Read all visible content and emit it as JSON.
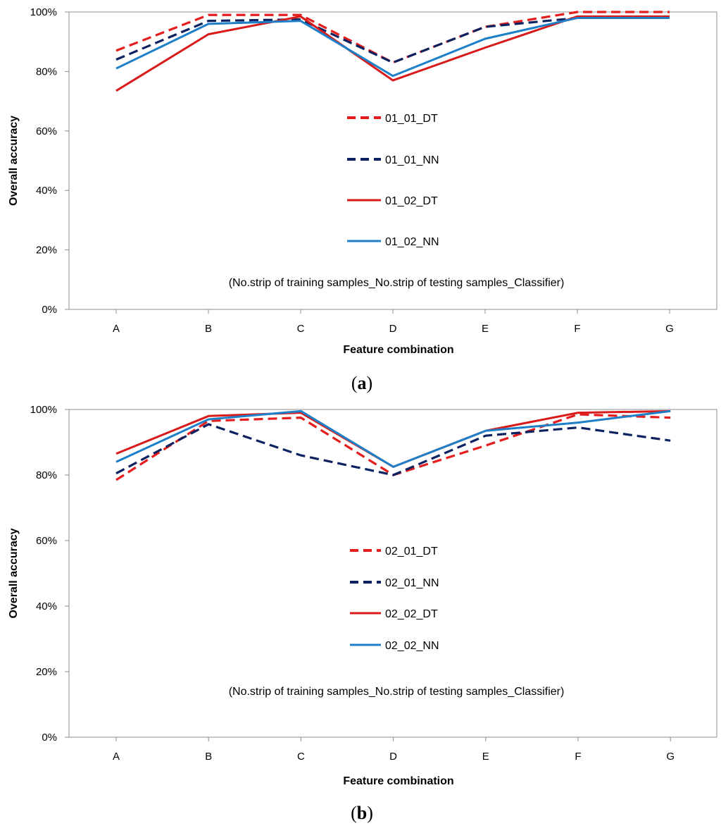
{
  "chart_data": [
    {
      "type": "line",
      "panel_label": "a",
      "categories": [
        "A",
        "B",
        "C",
        "D",
        "E",
        "F",
        "G"
      ],
      "xlabel": "Feature combination",
      "ylabel": "Overall accuracy",
      "ylim": [
        0,
        100
      ],
      "yticks": [
        "0%",
        "20%",
        "40%",
        "60%",
        "80%",
        "100%"
      ],
      "note": "(No.strip of training samples_No.strip of testing samples_Classifier)",
      "series": [
        {
          "name": "01_01_DT",
          "color": "#e41e1e",
          "style": "dashed",
          "values": [
            87,
            99,
            99,
            83,
            95,
            100,
            100
          ]
        },
        {
          "name": "01_01_NN",
          "color": "#0d2260",
          "style": "dashed",
          "values": [
            84,
            97,
            97.5,
            83,
            95,
            98,
            98
          ]
        },
        {
          "name": "01_02_DT",
          "color": "#d91a1a",
          "style": "solid",
          "values": [
            73.5,
            92.5,
            98.5,
            77,
            88,
            98.5,
            98.5
          ]
        },
        {
          "name": "01_02_NN",
          "color": "#1d7fc8",
          "style": "solid",
          "values": [
            81,
            96,
            97,
            78.5,
            91,
            98,
            98
          ]
        }
      ]
    },
    {
      "type": "line",
      "panel_label": "b",
      "categories": [
        "A",
        "B",
        "C",
        "D",
        "E",
        "F",
        "G"
      ],
      "xlabel": "Feature combination",
      "ylabel": "Overall accuracy",
      "ylim": [
        0,
        100
      ],
      "yticks": [
        "0%",
        "20%",
        "40%",
        "60%",
        "80%",
        "100%"
      ],
      "note": "(No.strip of training samples_No.strip of testing samples_Classifier)",
      "series": [
        {
          "name": "02_01_DT",
          "color": "#e41e1e",
          "style": "dashed",
          "values": [
            78.5,
            96.5,
            97.5,
            80,
            89,
            98.5,
            97.5
          ]
        },
        {
          "name": "02_01_NN",
          "color": "#0d2260",
          "style": "dashed",
          "values": [
            80.5,
            95.5,
            86,
            80,
            92,
            94.5,
            90.5
          ]
        },
        {
          "name": "02_02_DT",
          "color": "#d91a1a",
          "style": "solid",
          "values": [
            86.5,
            98,
            99,
            82.5,
            93.5,
            99,
            99.5
          ]
        },
        {
          "name": "02_02_NN",
          "color": "#1d7fc8",
          "style": "solid",
          "values": [
            84,
            97,
            99.5,
            82.5,
            93.5,
            96,
            99.5
          ]
        }
      ]
    }
  ]
}
